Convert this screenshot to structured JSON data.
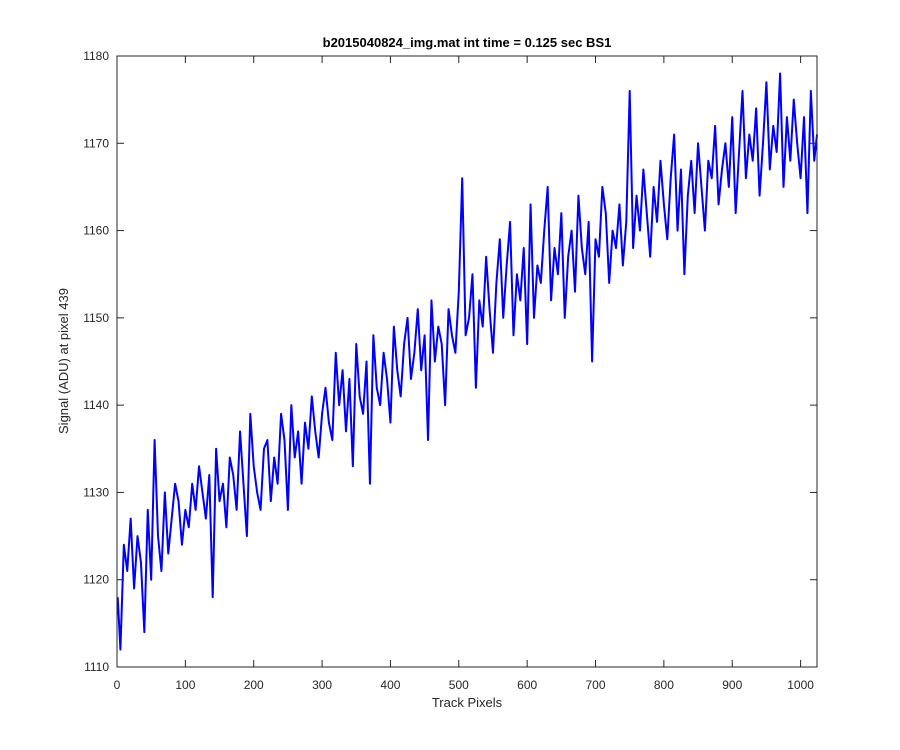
{
  "chart_data": {
    "type": "line",
    "title": "b2015040824_img.mat int time = 0.125 sec   BS1",
    "xlabel": "Track Pixels",
    "ylabel": "Signal (ADU) at pixel 439",
    "xlim": [
      0,
      1024
    ],
    "ylim": [
      1110,
      1180
    ],
    "x_ticks": [
      "0",
      "100",
      "200",
      "300",
      "400",
      "500",
      "600",
      "700",
      "800",
      "900",
      "1000"
    ],
    "y_ticks": [
      "1110",
      "1120",
      "1130",
      "1140",
      "1150",
      "1160",
      "1170",
      "1180"
    ],
    "grid": false,
    "series_color": "#0000ff",
    "axis_color": "#262626",
    "series": [
      {
        "x": [
          1,
          5,
          10,
          15,
          20,
          25,
          30,
          35,
          40,
          45,
          50,
          55,
          60,
          65,
          70,
          75,
          80,
          85,
          90,
          95,
          100,
          105,
          110,
          115,
          120,
          125,
          130,
          135,
          140,
          145,
          150,
          155,
          160,
          165,
          170,
          175,
          180,
          185,
          190,
          195,
          200,
          205,
          210,
          215,
          220,
          225,
          230,
          235,
          240,
          245,
          250,
          255,
          260,
          265,
          270,
          275,
          280,
          285,
          290,
          295,
          300,
          305,
          310,
          315,
          320,
          325,
          330,
          335,
          340,
          345,
          350,
          355,
          360,
          365,
          370,
          375,
          380,
          385,
          390,
          395,
          400,
          405,
          410,
          415,
          420,
          425,
          430,
          435,
          440,
          445,
          450,
          455,
          460,
          465,
          470,
          475,
          480,
          485,
          490,
          495,
          500,
          505,
          510,
          515,
          520,
          525,
          530,
          535,
          540,
          545,
          550,
          555,
          560,
          565,
          570,
          575,
          580,
          585,
          590,
          595,
          600,
          605,
          610,
          615,
          620,
          625,
          630,
          635,
          640,
          645,
          650,
          655,
          660,
          665,
          670,
          675,
          680,
          685,
          690,
          695,
          700,
          705,
          710,
          715,
          720,
          725,
          730,
          735,
          740,
          745,
          750,
          755,
          760,
          765,
          770,
          775,
          780,
          785,
          790,
          795,
          800,
          805,
          810,
          815,
          820,
          825,
          830,
          835,
          840,
          845,
          850,
          855,
          860,
          865,
          870,
          875,
          880,
          885,
          890,
          895,
          900,
          905,
          910,
          915,
          920,
          925,
          930,
          935,
          940,
          945,
          950,
          955,
          960,
          965,
          970,
          975,
          980,
          985,
          990,
          995,
          1000,
          1005,
          1010,
          1015,
          1020,
          1024
        ],
        "y": [
          1118,
          1112,
          1124,
          1121,
          1127,
          1119,
          1125,
          1122,
          1114,
          1128,
          1120,
          1136,
          1125,
          1121,
          1130,
          1123,
          1127,
          1131,
          1129,
          1124,
          1128,
          1126,
          1131,
          1128,
          1133,
          1130,
          1127,
          1132,
          1118,
          1135,
          1129,
          1131,
          1126,
          1134,
          1132,
          1128,
          1137,
          1131,
          1125,
          1139,
          1133,
          1130,
          1128,
          1135,
          1136,
          1129,
          1134,
          1131,
          1139,
          1136,
          1128,
          1140,
          1134,
          1137,
          1131,
          1138,
          1135,
          1141,
          1137,
          1134,
          1139,
          1142,
          1138,
          1136,
          1146,
          1140,
          1144,
          1137,
          1143,
          1133,
          1147,
          1141,
          1139,
          1145,
          1131,
          1148,
          1142,
          1140,
          1146,
          1143,
          1138,
          1149,
          1144,
          1141,
          1147,
          1150,
          1143,
          1146,
          1151,
          1144,
          1148,
          1136,
          1152,
          1145,
          1149,
          1147,
          1140,
          1151,
          1148,
          1146,
          1153,
          1166,
          1148,
          1150,
          1155,
          1142,
          1152,
          1149,
          1157,
          1151,
          1146,
          1154,
          1159,
          1150,
          1156,
          1161,
          1148,
          1155,
          1152,
          1158,
          1147,
          1163,
          1150,
          1156,
          1154,
          1160,
          1165,
          1152,
          1158,
          1155,
          1162,
          1150,
          1157,
          1160,
          1153,
          1164,
          1158,
          1155,
          1161,
          1145,
          1159,
          1157,
          1165,
          1162,
          1154,
          1160,
          1158,
          1163,
          1156,
          1161,
          1176,
          1158,
          1164,
          1160,
          1167,
          1162,
          1157,
          1165,
          1161,
          1168,
          1163,
          1159,
          1166,
          1171,
          1160,
          1167,
          1155,
          1164,
          1168,
          1162,
          1170,
          1165,
          1160,
          1168,
          1166,
          1172,
          1163,
          1167,
          1170,
          1165,
          1173,
          1162,
          1169,
          1176,
          1166,
          1171,
          1168,
          1174,
          1164,
          1170,
          1177,
          1167,
          1172,
          1169,
          1178,
          1165,
          1173,
          1168,
          1175,
          1170,
          1166,
          1173,
          1162,
          1176,
          1168,
          1171
        ]
      }
    ]
  }
}
